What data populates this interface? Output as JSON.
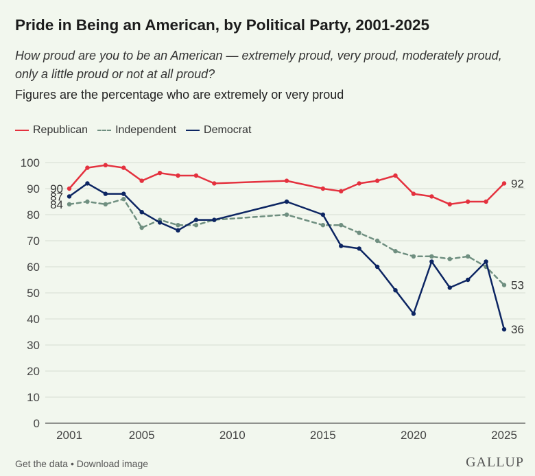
{
  "header": {
    "title": "Pride in Being an American, by Political Party, 2001-2025",
    "subtitle": "How proud are you to be an American — extremely proud, very proud, moderately proud, only a little proud or not at all proud?",
    "note": "Figures are the percentage who are extremely or very proud"
  },
  "footer": {
    "get_data": "Get the data",
    "separator": " • ",
    "download": "Download image",
    "brand": "GALLUP"
  },
  "chart_data": {
    "type": "line",
    "ylim": [
      0,
      100
    ],
    "yticks": [
      0,
      10,
      20,
      30,
      40,
      50,
      60,
      70,
      80,
      90,
      100
    ],
    "xlim": [
      2001,
      2025
    ],
    "xticks": [
      2001,
      2005,
      2010,
      2015,
      2020,
      2025
    ],
    "grid": true,
    "legend_position": "top-left",
    "series": [
      {
        "name": "Republican",
        "color": "#e4313e",
        "style": "solid",
        "x": [
          2001,
          2002,
          2003,
          2004,
          2005,
          2006,
          2007,
          2008,
          2009,
          2013,
          2015,
          2016,
          2017,
          2018,
          2019,
          2020,
          2021,
          2022,
          2023,
          2024,
          2025
        ],
        "y": [
          90,
          98,
          99,
          98,
          93,
          96,
          95,
          95,
          92,
          93,
          90,
          89,
          92,
          93,
          95,
          88,
          87,
          84,
          85,
          85,
          92
        ],
        "start_label": "90",
        "end_label": "92"
      },
      {
        "name": "Independent",
        "color": "#6f8f80",
        "style": "dashed",
        "x": [
          2001,
          2002,
          2003,
          2004,
          2005,
          2006,
          2007,
          2008,
          2009,
          2013,
          2015,
          2016,
          2017,
          2018,
          2019,
          2020,
          2021,
          2022,
          2023,
          2024,
          2025
        ],
        "y": [
          84,
          85,
          84,
          86,
          75,
          78,
          76,
          76,
          78,
          80,
          76,
          76,
          73,
          70,
          66,
          64,
          64,
          63,
          64,
          60,
          53
        ],
        "start_label": "84",
        "end_label": "53"
      },
      {
        "name": "Democrat",
        "color": "#0c2562",
        "style": "solid",
        "x": [
          2001,
          2002,
          2003,
          2004,
          2005,
          2006,
          2007,
          2008,
          2009,
          2013,
          2015,
          2016,
          2017,
          2018,
          2019,
          2020,
          2021,
          2022,
          2023,
          2024,
          2025
        ],
        "y": [
          87,
          92,
          88,
          88,
          81,
          77,
          74,
          78,
          78,
          85,
          80,
          68,
          67,
          60,
          51,
          42,
          62,
          52,
          55,
          62,
          36
        ],
        "start_label": "87",
        "end_label": "36"
      }
    ]
  }
}
